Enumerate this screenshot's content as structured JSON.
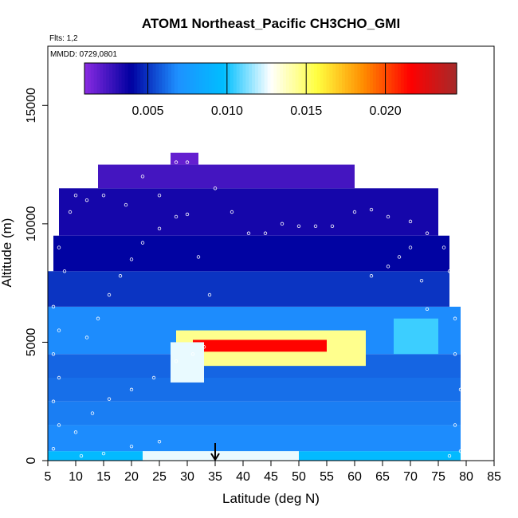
{
  "chart_data": {
    "type": "heatmap",
    "title": "ATOM1 Northeast_Pacific CH3CHO_GMI",
    "flights_label": "Flts: 1,2",
    "date_label": "MMDD: 0729,0801",
    "xlabel": "Latitude (deg N)",
    "ylabel": "Altitude (m)",
    "xlim": [
      5,
      85
    ],
    "ylim": [
      0,
      17500
    ],
    "x_ticks": [
      "5",
      "10",
      "15",
      "20",
      "25",
      "30",
      "35",
      "40",
      "45",
      "50",
      "55",
      "60",
      "65",
      "70",
      "75",
      "80",
      "85"
    ],
    "y_ticks": [
      "0",
      "5000",
      "10000",
      "15000"
    ],
    "colorbar": {
      "range": [
        0.001,
        0.0245
      ],
      "tick_values": [
        0.005,
        0.01,
        0.015,
        0.02
      ],
      "tick_labels": [
        "0.005",
        "0.010",
        "0.015",
        "0.020"
      ],
      "colors": [
        "#8a2be2",
        "#0000a0",
        "#1e90ff",
        "#00bfff",
        "#ffffff",
        "#ffff40",
        "#ff8c00",
        "#ff0000",
        "#a52a2a"
      ]
    },
    "marker": {
      "latitude": 35,
      "symbol": "arrow"
    },
    "layers": [
      {
        "alt_min": 0,
        "alt_max": 400,
        "lat_min": 5,
        "lat_max": 79,
        "value": 0.0095
      },
      {
        "alt_min": 400,
        "alt_max": 1500,
        "lat_min": 5,
        "lat_max": 79,
        "value": 0.0068
      },
      {
        "alt_min": 1500,
        "alt_max": 2500,
        "lat_min": 5,
        "lat_max": 79,
        "value": 0.0065
      },
      {
        "alt_min": 2500,
        "alt_max": 3500,
        "lat_min": 5,
        "lat_max": 79,
        "value": 0.0062
      },
      {
        "alt_min": 3500,
        "alt_max": 4500,
        "lat_min": 5,
        "lat_max": 79,
        "value": 0.006
      },
      {
        "alt_min": 4500,
        "alt_max": 6500,
        "lat_min": 5,
        "lat_max": 79,
        "value": 0.0068
      },
      {
        "alt_min": 6500,
        "alt_max": 8000,
        "lat_min": 5,
        "lat_max": 77,
        "value": 0.005
      },
      {
        "alt_min": 8000,
        "alt_max": 9500,
        "lat_min": 6,
        "lat_max": 77,
        "value": 0.004
      },
      {
        "alt_min": 9500,
        "alt_max": 11500,
        "lat_min": 7,
        "lat_max": 75,
        "value": 0.0035
      },
      {
        "alt_min": 11500,
        "alt_max": 12500,
        "lat_min": 14,
        "lat_max": 60,
        "value": 0.0025
      },
      {
        "alt_min": 12500,
        "alt_max": 13000,
        "lat_min": 27,
        "lat_max": 32,
        "value": 0.0018
      }
    ],
    "hotspots": [
      {
        "lat_min": 28,
        "lat_max": 62,
        "alt_min": 4000,
        "alt_max": 5500,
        "value": 0.0145
      },
      {
        "lat_min": 31,
        "lat_max": 55,
        "alt_min": 4600,
        "alt_max": 5100,
        "value": 0.0215
      },
      {
        "lat_min": 27,
        "lat_max": 33,
        "alt_min": 3300,
        "alt_max": 5000,
        "value": 0.0125
      },
      {
        "lat_min": 67,
        "lat_max": 75,
        "alt_min": 4500,
        "alt_max": 6000,
        "value": 0.0105
      },
      {
        "lat_min": 22,
        "lat_max": 50,
        "alt_min": 0,
        "alt_max": 400,
        "value": 0.0125
      }
    ]
  }
}
